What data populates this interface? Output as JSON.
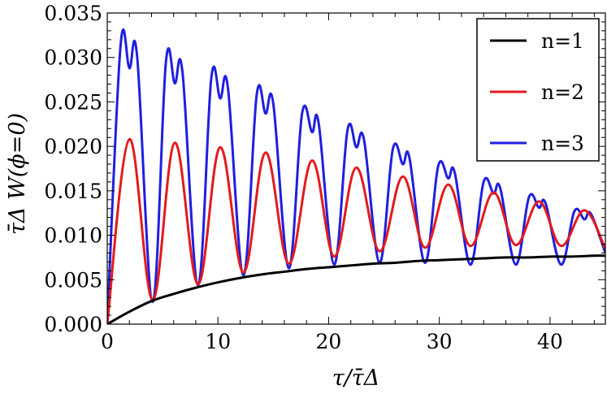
{
  "chart_data": {
    "type": "line",
    "title": "",
    "xlabel": "τ/τ̄Δ",
    "ylabel": "τ̄Δ W(ϕ=0)",
    "xlim": [
      0,
      45
    ],
    "ylim": [
      0,
      0.035
    ],
    "x_ticks": [
      0,
      10,
      20,
      30,
      40
    ],
    "y_ticks": [
      "0.000",
      "0.005",
      "0.010",
      "0.015",
      "0.020",
      "0.025",
      "0.030",
      "0.035"
    ],
    "legend_position": "top-right",
    "series": [
      {
        "name": "n=1",
        "color": "#000000",
        "x": [
          0,
          2,
          4,
          6,
          8,
          10,
          12,
          14,
          16,
          18,
          20,
          22,
          24,
          26,
          28,
          30,
          32,
          34,
          36,
          38,
          40,
          42,
          44,
          45
        ],
        "values": [
          0,
          0.0014,
          0.0026,
          0.0034,
          0.0041,
          0.0047,
          0.0052,
          0.0056,
          0.0059,
          0.0062,
          0.0064,
          0.0066,
          0.0068,
          0.0069,
          0.0071,
          0.0072,
          0.0073,
          0.0074,
          0.0075,
          0.0075,
          0.0076,
          0.0076,
          0.0077,
          0.0077
        ]
      },
      {
        "name": "n=2",
        "color": "#e31a1c",
        "x": [
          0,
          2.0,
          4.1,
          6.1,
          8.2,
          10.2,
          12.3,
          14.3,
          16.4,
          18.5,
          20.5,
          22.5,
          24.6,
          26.7,
          28.7,
          30.8,
          32.8,
          34.9,
          36.9,
          39.0,
          41.0,
          43.1,
          45
        ],
        "values": [
          0,
          0.0208,
          0.0027,
          0.0204,
          0.0045,
          0.0199,
          0.0058,
          0.0193,
          0.0068,
          0.0184,
          0.0076,
          0.0176,
          0.0082,
          0.0166,
          0.0086,
          0.0157,
          0.0088,
          0.0148,
          0.0089,
          0.0138,
          0.0088,
          0.0128,
          0.0085
        ]
      },
      {
        "name": "n=3",
        "color": "#1f1fe0",
        "x": [
          0,
          1.2,
          2.0,
          2.7,
          4.1,
          5.3,
          6.1,
          6.8,
          8.2,
          9.4,
          10.2,
          10.9,
          12.3,
          13.5,
          14.3,
          15.0,
          16.4,
          17.6,
          18.5,
          19.1,
          20.5,
          21.7,
          22.5,
          23.2,
          24.6,
          25.8,
          26.7,
          27.3,
          28.7,
          29.9,
          30.8,
          31.4,
          32.8,
          34.0,
          34.9,
          35.5,
          36.9,
          38.1,
          39.0,
          39.6,
          41.0,
          42.2,
          43.1,
          43.7,
          45
        ],
        "values": [
          0,
          0.0313,
          0.0288,
          0.0301,
          0.0025,
          0.0295,
          0.0271,
          0.0283,
          0.0044,
          0.0277,
          0.0254,
          0.0266,
          0.0055,
          0.0258,
          0.0237,
          0.0248,
          0.0063,
          0.0237,
          0.0216,
          0.0226,
          0.0067,
          0.0218,
          0.0199,
          0.0207,
          0.0069,
          0.0197,
          0.018,
          0.0187,
          0.0069,
          0.0178,
          0.0164,
          0.017,
          0.0067,
          0.016,
          0.0147,
          0.0153,
          0.0067,
          0.0143,
          0.0131,
          0.0136,
          0.0067,
          0.0127,
          0.0118,
          0.0124,
          0.008
        ]
      }
    ]
  }
}
